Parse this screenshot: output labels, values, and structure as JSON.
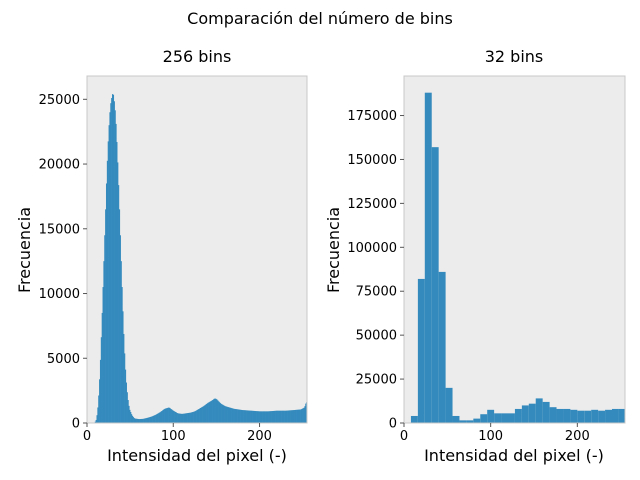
{
  "figure": {
    "suptitle": "Comparación del número de bins",
    "background": "#ffffff",
    "axes_facecolor": "#ececec",
    "spine_color": "#c8c8c8",
    "bar_color": "#348abd"
  },
  "chart_data": [
    {
      "type": "bar",
      "title": "256 bins",
      "xlabel": "Intensidad del pixel (-)",
      "ylabel": "Frecuencia",
      "xlim": [
        0,
        255
      ],
      "ylim": [
        0,
        26800
      ],
      "grid": false,
      "xticks": [
        0,
        100,
        200
      ],
      "yticks": [
        0,
        5000,
        10000,
        15000,
        20000,
        25000
      ],
      "bin_edges_range": [
        0,
        256
      ],
      "bins": 256,
      "curve_points": [
        [
          0,
          0
        ],
        [
          7,
          0
        ],
        [
          9,
          40
        ],
        [
          11,
          300
        ],
        [
          13,
          1500
        ],
        [
          15,
          4000
        ],
        [
          17,
          7500
        ],
        [
          19,
          11500
        ],
        [
          21,
          15500
        ],
        [
          23,
          19500
        ],
        [
          25,
          22500
        ],
        [
          27,
          24500
        ],
        [
          29,
          25300
        ],
        [
          30,
          25500
        ],
        [
          31,
          25200
        ],
        [
          33,
          23800
        ],
        [
          35,
          21000
        ],
        [
          37,
          17500
        ],
        [
          39,
          13500
        ],
        [
          41,
          9500
        ],
        [
          43,
          6000
        ],
        [
          45,
          3500
        ],
        [
          47,
          2000
        ],
        [
          49,
          1100
        ],
        [
          52,
          600
        ],
        [
          55,
          350
        ],
        [
          60,
          300
        ],
        [
          65,
          320
        ],
        [
          70,
          400
        ],
        [
          75,
          500
        ],
        [
          80,
          650
        ],
        [
          85,
          850
        ],
        [
          90,
          1100
        ],
        [
          95,
          1200
        ],
        [
          100,
          950
        ],
        [
          105,
          750
        ],
        [
          110,
          700
        ],
        [
          115,
          750
        ],
        [
          120,
          800
        ],
        [
          125,
          900
        ],
        [
          130,
          1100
        ],
        [
          135,
          1300
        ],
        [
          140,
          1550
        ],
        [
          145,
          1750
        ],
        [
          148,
          1900
        ],
        [
          150,
          1850
        ],
        [
          155,
          1500
        ],
        [
          160,
          1300
        ],
        [
          165,
          1200
        ],
        [
          170,
          1100
        ],
        [
          180,
          1000
        ],
        [
          190,
          950
        ],
        [
          200,
          900
        ],
        [
          210,
          900
        ],
        [
          220,
          950
        ],
        [
          230,
          950
        ],
        [
          240,
          1000
        ],
        [
          248,
          1050
        ],
        [
          252,
          1200
        ],
        [
          254,
          1600
        ],
        [
          255,
          1600
        ]
      ]
    },
    {
      "type": "bar",
      "title": "32 bins",
      "xlabel": "Intensidad del pixel (-)",
      "ylabel": "Frecuencia",
      "xlim": [
        0,
        255
      ],
      "ylim": [
        0,
        197500
      ],
      "grid": false,
      "xticks": [
        0,
        100,
        200
      ],
      "yticks": [
        0,
        25000,
        50000,
        75000,
        100000,
        125000,
        150000,
        175000
      ],
      "bin_edges_range": [
        0,
        256
      ],
      "bins": 32,
      "values": [
        0,
        4000,
        82000,
        188000,
        157000,
        86000,
        20000,
        4000,
        1500,
        1500,
        2500,
        5000,
        7500,
        5500,
        5500,
        5500,
        8000,
        10000,
        11000,
        14000,
        12000,
        9000,
        8000,
        8000,
        7500,
        7000,
        7000,
        7500,
        7000,
        7500,
        8000,
        8000
      ]
    }
  ]
}
